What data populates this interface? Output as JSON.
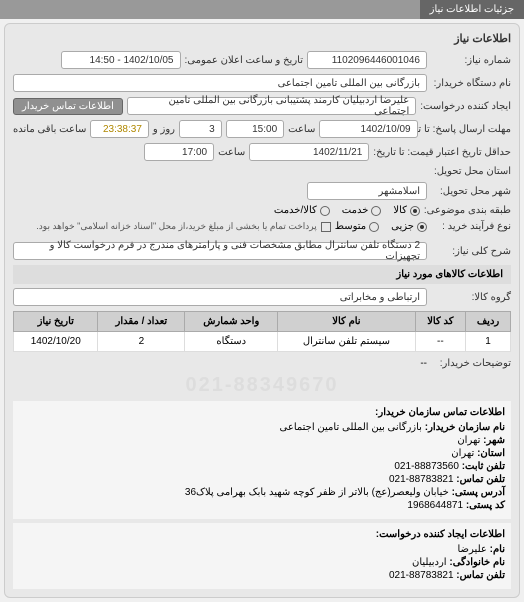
{
  "tabs": {
    "main": "جزئیات اطلاعات نیاز"
  },
  "panelTitle": "اطلاعات نیاز",
  "needNumber": {
    "label": "شماره نیاز:",
    "value": "1102096446001046"
  },
  "announceTime": {
    "label": "تاریخ و ساعت اعلان عمومی:",
    "value": "1402/10/05 - 14:50"
  },
  "buyerOrg": {
    "label": "نام دستگاه خریدار:",
    "value": "بازرگانی بین المللی تامین اجتماعی"
  },
  "requester": {
    "label": "ایجاد کننده درخواست:",
    "value": "علیرضا اردبیلیان کارمند پشتیبانی بازرگانی بین المللی تامین اجتماعی",
    "contactBtn": "اطلاعات تماس خریدار"
  },
  "deadline": {
    "label": "مهلت ارسال پاسخ: تا تاریخ:",
    "date": "1402/10/09",
    "timeLabel": "ساعت",
    "time": "15:00",
    "days": "3",
    "daysLabel": "روز و",
    "remaining": "23:38:37",
    "remainingLabel": "ساعت باقی مانده"
  },
  "validity": {
    "label": "حداقل تاریخ اعتبار قیمت: تا تاریخ:",
    "date": "1402/11/21",
    "timeLabel": "ساعت",
    "time": "17:00"
  },
  "deliveryProvince": {
    "label": "استان محل تحویل:"
  },
  "deliveryCity": {
    "label": "شهر محل تحویل:",
    "value": "اسلامشهر"
  },
  "subjectType": {
    "label": "طبقه بندی موضوعی:",
    "options": [
      {
        "label": "کالا",
        "checked": true
      },
      {
        "label": "خدمت",
        "checked": false
      },
      {
        "label": "کالا/خدمت",
        "checked": false
      }
    ]
  },
  "paymentType": {
    "label": "نوع فرآیند خرید :",
    "options": [
      {
        "label": "جزیی",
        "checked": true
      },
      {
        "label": "متوسط",
        "checked": false
      }
    ],
    "checkboxLabel": "پرداخت تمام یا بخشی از مبلغ خرید،از محل \"اسناد خزانه اسلامی\" خواهد بود."
  },
  "keywords": {
    "label": "شرح کلی نیاز:",
    "value": "2 دستگاه تلفن سانترال مطابق مشخصات فنی و پارامترهای مندرج در فرم درخواست کالا و تجهیزات"
  },
  "itemsHeader": "اطلاعات کالاهای مورد نیاز",
  "itemsGroup": {
    "label": "گروه کالا:",
    "value": "ارتباطی و مخابراتی"
  },
  "table": {
    "columns": [
      "ردیف",
      "کد کالا",
      "نام کالا",
      "واحد شمارش",
      "تعداد / مقدار",
      "تاریخ نیاز"
    ],
    "rows": [
      [
        "1",
        "--",
        "سیستم تلفن سانترال",
        "دستگاه",
        "2",
        "1402/10/20"
      ]
    ]
  },
  "buyerNotes": {
    "label": "توضیحات خریدار:",
    "value": "--"
  },
  "watermark": "021-88349670",
  "contactBuyer": {
    "title": "اطلاعات تماس سازمان خریدار:",
    "rows": [
      {
        "label": "نام سازمان خریدار:",
        "value": "بازرگانی بین المللی تامین اجتماعی"
      },
      {
        "label": "شهر:",
        "value": "تهران"
      },
      {
        "label": "استان:",
        "value": "تهران"
      },
      {
        "label": "تلفن ثابت:",
        "value": "88873560-021"
      },
      {
        "label": "تلفن تماس:",
        "value": "88783821-021"
      },
      {
        "label": "آدرس پستی:",
        "value": "خیابان ولیعصر(عج) بالاتر از ظفر کوچه شهید بابک بهرامی پلاک36"
      },
      {
        "label": "کد پستی:",
        "value": "1968644871"
      }
    ]
  },
  "contactRequester": {
    "title": "اطلاعات ایجاد کننده درخواست:",
    "rows": [
      {
        "label": "نام:",
        "value": "علیرضا"
      },
      {
        "label": "نام خانوادگی:",
        "value": "اردبیلیان"
      },
      {
        "label": "تلفن تماس:",
        "value": "88783821-021"
      }
    ]
  }
}
